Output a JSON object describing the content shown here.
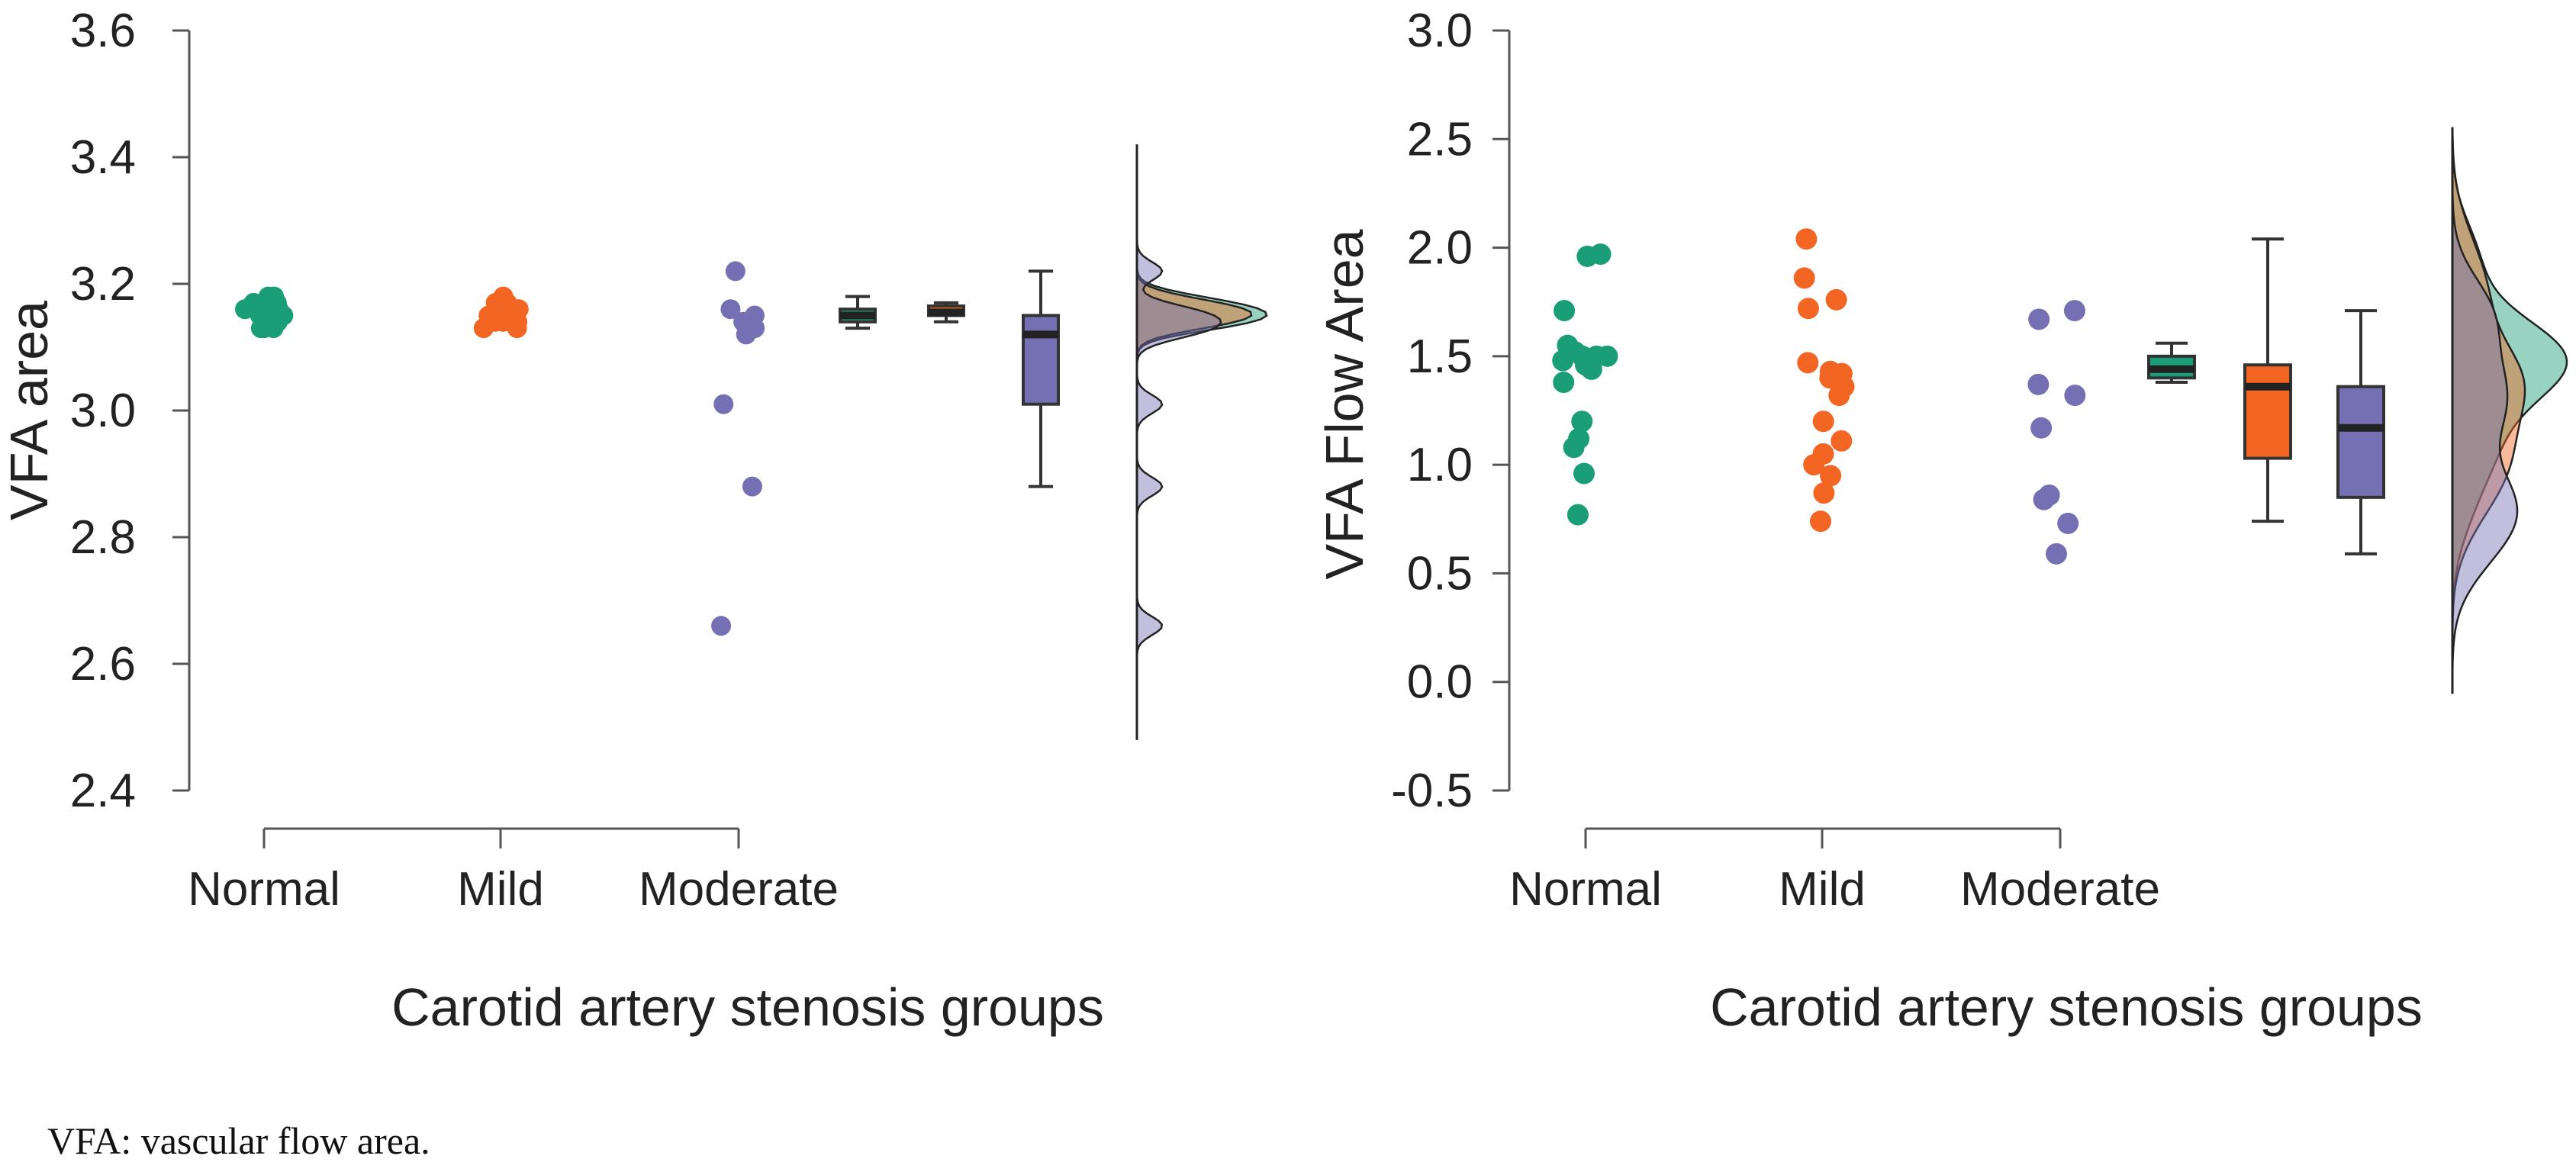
{
  "caption": "VFA: vascular flow area.",
  "colors": {
    "normal": "#1a9e77",
    "mild": "#f26522",
    "moderate": "#7570b3",
    "axis": "#555555",
    "box_edge": "#333333"
  },
  "chart_data": [
    {
      "type": "raincloud",
      "ylabel": "VFA area",
      "xlabel": "Carotid artery stenosis groups",
      "ylim": [
        2.4,
        3.6
      ],
      "yticks": [
        2.4,
        2.6,
        2.8,
        3.0,
        3.2,
        3.4,
        3.6
      ],
      "ytick_labels": [
        "2.4",
        "2.6",
        "2.8",
        "3.0",
        "3.2",
        "3.4",
        "3.6"
      ],
      "categories": [
        "Normal",
        "Mild",
        "Moderate"
      ],
      "series": [
        {
          "name": "Normal",
          "points": [
            3.13,
            3.14,
            3.15,
            3.16,
            3.17,
            3.18,
            3.13,
            3.14,
            3.15,
            3.16,
            3.17,
            3.18,
            3.15,
            3.14,
            3.16,
            3.13,
            3.17,
            3.15,
            3.14,
            3.16
          ],
          "box": {
            "whisker_low": 3.13,
            "q1": 3.14,
            "median": 3.15,
            "q3": 3.16,
            "whisker_high": 3.18
          }
        },
        {
          "name": "Mild",
          "points": [
            3.13,
            3.14,
            3.15,
            3.16,
            3.17,
            3.18,
            3.14,
            3.15,
            3.16,
            3.17,
            3.13,
            3.16,
            3.15,
            3.14,
            3.17,
            3.16,
            3.15,
            3.14
          ],
          "box": {
            "whisker_low": 3.14,
            "q1": 3.15,
            "median": 3.155,
            "q3": 3.165,
            "whisker_high": 3.17
          }
        },
        {
          "name": "Moderate",
          "points": [
            3.22,
            3.16,
            3.15,
            3.14,
            3.13,
            3.12,
            3.01,
            2.88,
            2.66
          ],
          "box": {
            "whisker_low": 2.88,
            "q1": 3.01,
            "median": 3.12,
            "q3": 3.15,
            "whisker_high": 3.22
          }
        }
      ]
    },
    {
      "type": "raincloud",
      "ylabel": "VFA Flow Area",
      "xlabel": "Carotid artery stenosis groups",
      "ylim": [
        -0.5,
        3.0
      ],
      "yticks": [
        -0.5,
        0.0,
        0.5,
        1.0,
        1.5,
        2.0,
        2.5,
        3.0
      ],
      "ytick_labels": [
        "-0.5",
        "0.0",
        "0.5",
        "1.0",
        "1.5",
        "2.0",
        "2.5",
        "3.0"
      ],
      "categories": [
        "Normal",
        "Mild",
        "Moderate"
      ],
      "series": [
        {
          "name": "Normal",
          "points": [
            1.97,
            1.96,
            1.71,
            1.55,
            1.52,
            1.5,
            1.5,
            1.48,
            1.46,
            1.45,
            1.5,
            1.44,
            1.38,
            1.2,
            1.12,
            1.08,
            0.96,
            0.77
          ],
          "box": {
            "whisker_low": 1.38,
            "q1": 1.4,
            "median": 1.44,
            "q3": 1.5,
            "whisker_high": 1.56
          }
        },
        {
          "name": "Mild",
          "points": [
            2.04,
            1.86,
            1.76,
            1.72,
            1.47,
            1.43,
            1.42,
            1.4,
            1.36,
            1.32,
            1.2,
            1.11,
            1.05,
            1.0,
            0.95,
            0.87,
            0.74
          ],
          "box": {
            "whisker_low": 0.74,
            "q1": 1.03,
            "median": 1.36,
            "q3": 1.46,
            "whisker_high": 2.04
          }
        },
        {
          "name": "Moderate",
          "points": [
            1.71,
            1.67,
            1.37,
            1.32,
            1.17,
            0.86,
            0.84,
            0.73,
            0.59
          ],
          "box": {
            "whisker_low": 0.59,
            "q1": 0.85,
            "median": 1.17,
            "q3": 1.36,
            "whisker_high": 1.71
          }
        }
      ]
    }
  ]
}
